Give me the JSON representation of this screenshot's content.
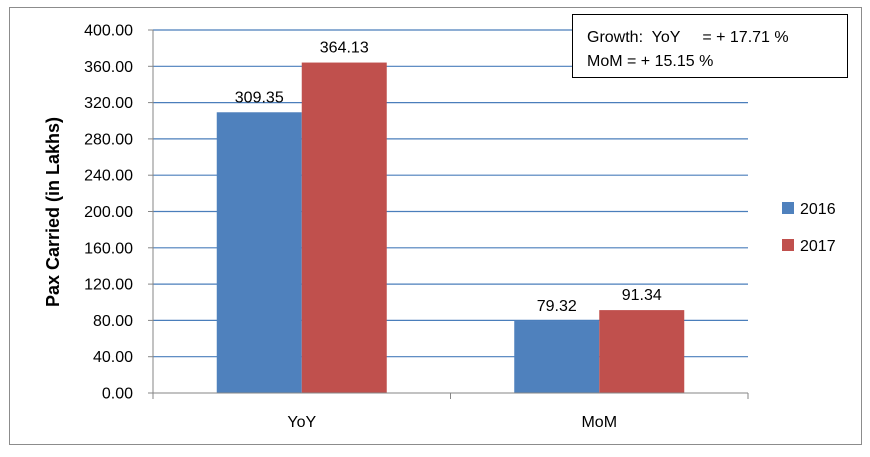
{
  "chart_data": {
    "type": "bar",
    "categories": [
      "YoY",
      "MoM"
    ],
    "series": [
      {
        "name": "2016",
        "values": [
          309.35,
          79.32
        ],
        "labels": [
          "309.35",
          "79.32"
        ],
        "color": "#4f81bd"
      },
      {
        "name": "2017",
        "values": [
          364.13,
          91.34
        ],
        "labels": [
          "364.13",
          "91.34"
        ],
        "color": "#c0504d"
      }
    ],
    "ylabel": "Pax Carried (in Lakhs)",
    "xlabel": "",
    "ylim": [
      0,
      400
    ],
    "yticks": [
      "0.00",
      "40.00",
      "80.00",
      "120.00",
      "160.00",
      "200.00",
      "240.00",
      "280.00",
      "320.00",
      "360.00",
      "400.00"
    ],
    "grid": true,
    "legend_position": "right",
    "annotation": {
      "line1": "Growth:  YoY     = + 17.71 %",
      "line2": "MoM = + 15.15 %"
    }
  }
}
